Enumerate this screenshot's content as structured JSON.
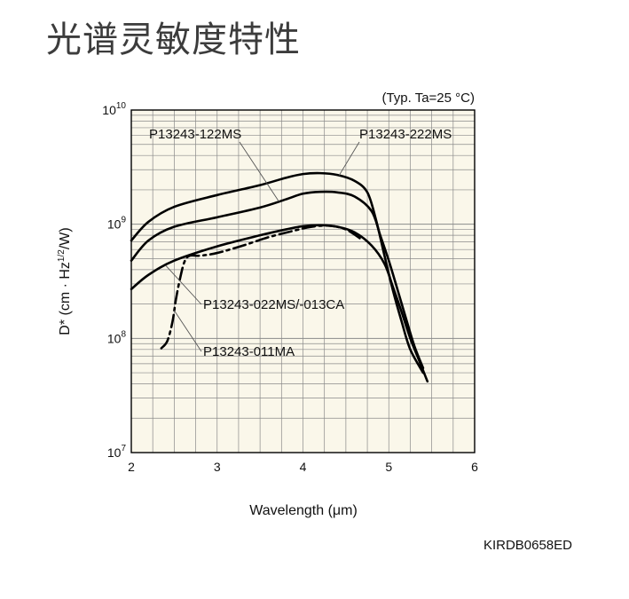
{
  "page": {
    "title": "光谱灵敏度特性",
    "code": "KIRDB0658ED"
  },
  "colors": {
    "background": "#ffffff",
    "plot_background": "#faf7ea",
    "grid": "#8a8a8a",
    "curve": "#000000",
    "text": "#111111"
  },
  "chart_data": {
    "type": "line",
    "xlabel": "Wavelength (μm)",
    "ylabel": "D* (cm · Hz1/2/W)",
    "ylabel_parts": {
      "base": "D* (cm · Hz",
      "sup": "1/2",
      "tail": "/W)"
    },
    "annotation": "(Typ. Ta=25 °C)",
    "xlim": [
      2,
      6
    ],
    "ylim": [
      10000000,
      10000000000
    ],
    "yscale": "log",
    "grid": true,
    "x_ticks": [
      2,
      3,
      4,
      5,
      6
    ],
    "y_ticks": [
      {
        "value": 10000000,
        "base": "10",
        "exp": "7"
      },
      {
        "value": 100000000,
        "base": "10",
        "exp": "8"
      },
      {
        "value": 1000000000,
        "base": "10",
        "exp": "9"
      },
      {
        "value": 10000000000,
        "base": "10",
        "exp": "10"
      }
    ],
    "series": [
      {
        "name": "P13243-222MS",
        "style": "solid",
        "points": [
          [
            2.0,
            720000000
          ],
          [
            2.2,
            1050000000
          ],
          [
            2.5,
            1420000000
          ],
          [
            3.0,
            1800000000
          ],
          [
            3.5,
            2200000000
          ],
          [
            3.8,
            2550000000
          ],
          [
            4.0,
            2750000000
          ],
          [
            4.2,
            2800000000
          ],
          [
            4.4,
            2700000000
          ],
          [
            4.6,
            2400000000
          ],
          [
            4.75,
            1900000000
          ],
          [
            4.85,
            1100000000
          ],
          [
            4.95,
            530000000
          ],
          [
            5.05,
            260000000
          ],
          [
            5.15,
            140000000
          ],
          [
            5.25,
            80000000
          ],
          [
            5.4,
            50000000
          ]
        ]
      },
      {
        "name": "P13243-122MS",
        "style": "solid",
        "points": [
          [
            2.0,
            480000000
          ],
          [
            2.2,
            720000000
          ],
          [
            2.5,
            950000000
          ],
          [
            3.0,
            1150000000
          ],
          [
            3.5,
            1400000000
          ],
          [
            3.8,
            1650000000
          ],
          [
            4.0,
            1850000000
          ],
          [
            4.2,
            1920000000
          ],
          [
            4.4,
            1900000000
          ],
          [
            4.6,
            1750000000
          ],
          [
            4.8,
            1300000000
          ],
          [
            4.9,
            800000000
          ],
          [
            5.0,
            480000000
          ],
          [
            5.1,
            270000000
          ],
          [
            5.2,
            150000000
          ],
          [
            5.3,
            85000000
          ],
          [
            5.4,
            55000000
          ]
        ]
      },
      {
        "name": "P13243-022MS/-013CA",
        "style": "solid",
        "points": [
          [
            2.0,
            270000000
          ],
          [
            2.2,
            360000000
          ],
          [
            2.5,
            480000000
          ],
          [
            3.0,
            640000000
          ],
          [
            3.5,
            800000000
          ],
          [
            3.8,
            900000000
          ],
          [
            4.0,
            960000000
          ],
          [
            4.2,
            980000000
          ],
          [
            4.4,
            950000000
          ],
          [
            4.6,
            850000000
          ],
          [
            4.8,
            650000000
          ],
          [
            4.95,
            450000000
          ],
          [
            5.05,
            280000000
          ],
          [
            5.15,
            170000000
          ],
          [
            5.25,
            100000000
          ],
          [
            5.35,
            65000000
          ],
          [
            5.45,
            42000000
          ]
        ]
      },
      {
        "name": "P13243-011MA",
        "style": "dashdot",
        "points": [
          [
            2.35,
            82000000
          ],
          [
            2.42,
            95000000
          ],
          [
            2.48,
            140000000
          ],
          [
            2.52,
            220000000
          ],
          [
            2.57,
            340000000
          ],
          [
            2.62,
            470000000
          ],
          [
            2.68,
            530000000
          ],
          [
            2.8,
            530000000
          ],
          [
            3.0,
            560000000
          ],
          [
            3.3,
            650000000
          ],
          [
            3.6,
            770000000
          ],
          [
            3.9,
            880000000
          ],
          [
            4.1,
            950000000
          ],
          [
            4.3,
            970000000
          ],
          [
            4.5,
            900000000
          ],
          [
            4.7,
            720000000
          ]
        ]
      }
    ],
    "labels": [
      {
        "text": "P13243-122MS",
        "series": "P13243-122MS"
      },
      {
        "text": "P13243-222MS",
        "series": "P13243-222MS"
      },
      {
        "text": "P13243-022MS/-013CA",
        "series": "P13243-022MS/-013CA"
      },
      {
        "text": "P13243-011MA",
        "series": "P13243-011MA"
      }
    ]
  }
}
